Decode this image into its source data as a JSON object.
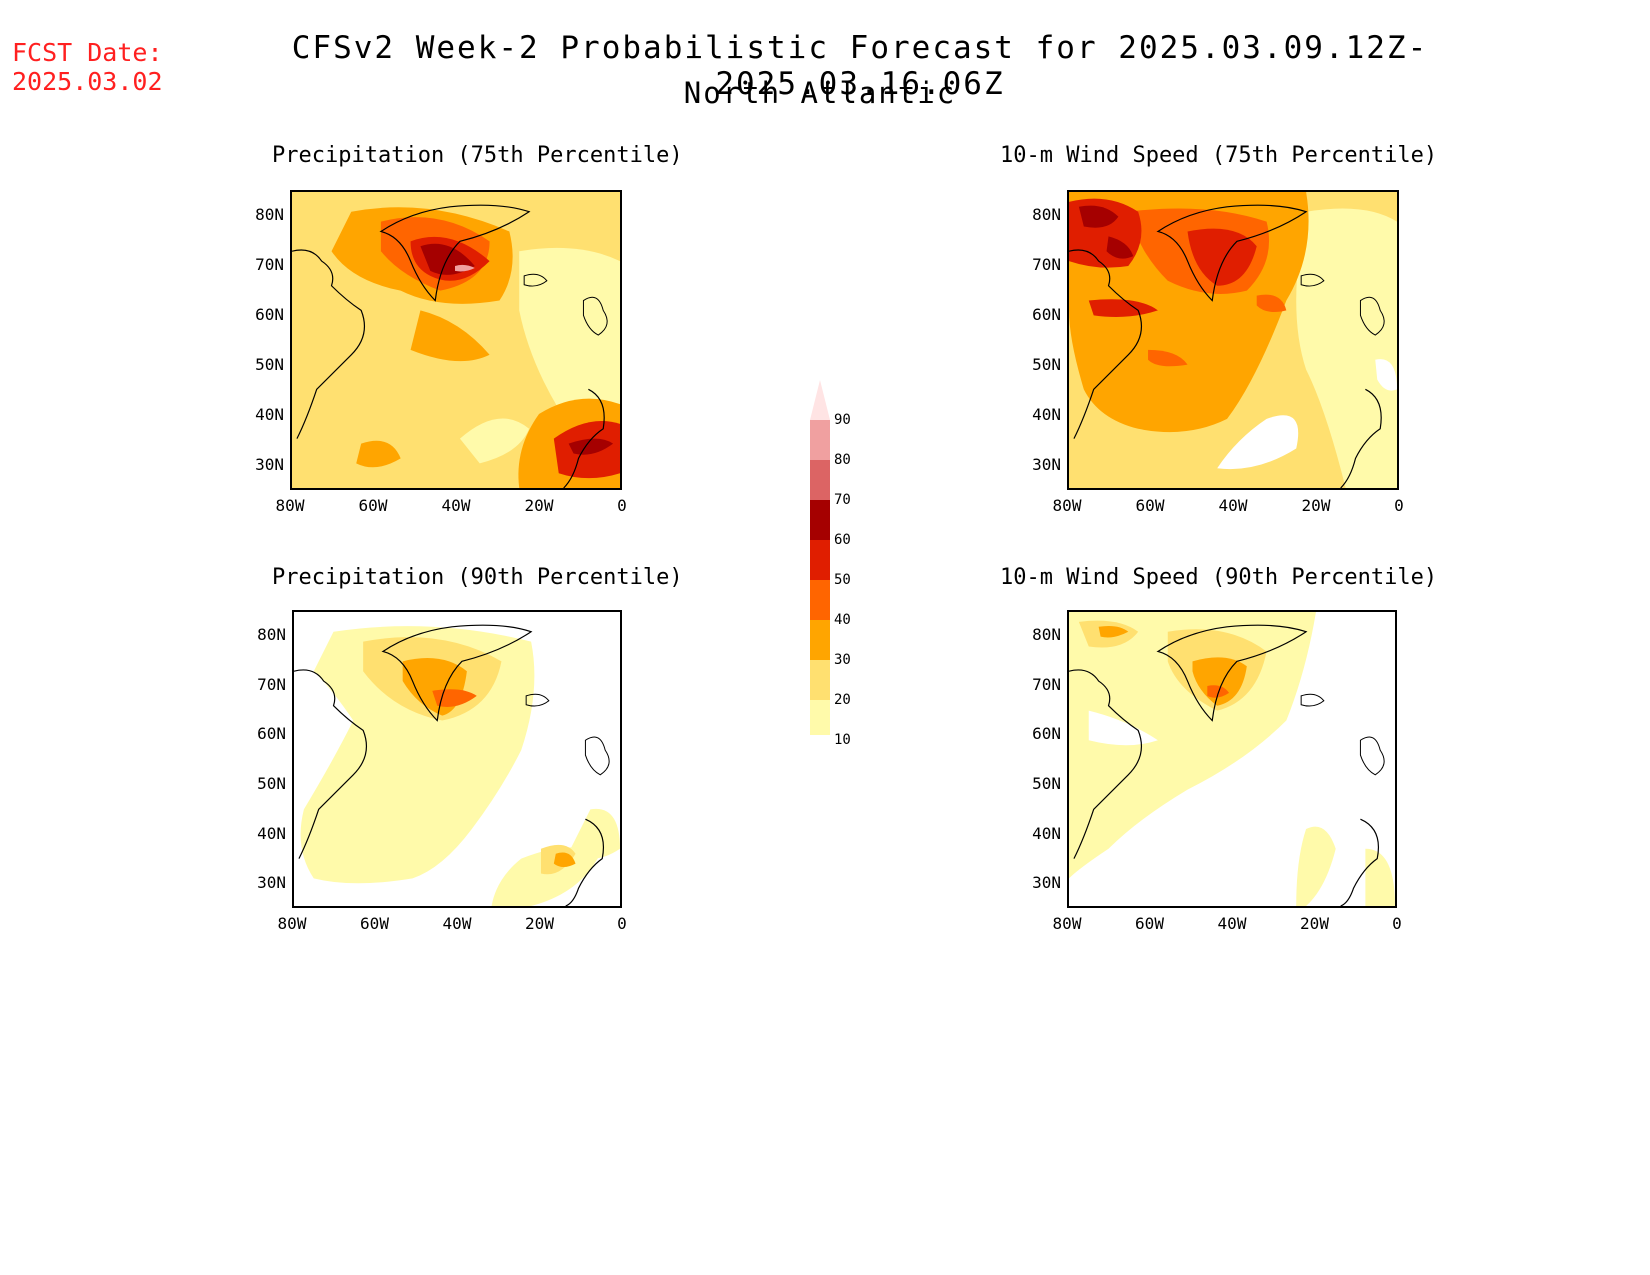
{
  "header": {
    "fcst_label": "FCST Date:",
    "fcst_date": "2025.03.02",
    "title": "CFSv2 Week-2 Probabilistic Forecast for 2025.03.09.12Z-2025.03.16.06Z",
    "region": "North Atlantic",
    "fcst_color": "#ff2020"
  },
  "axes": {
    "lat_ticks": [
      "80N",
      "70N",
      "60N",
      "50N",
      "40N",
      "30N"
    ],
    "lon_ticks": [
      "80W",
      "60W",
      "40W",
      "20W",
      "0"
    ]
  },
  "panels": [
    {
      "id": "precip-75",
      "title": "Precipitation (75th Percentile)"
    },
    {
      "id": "wind-75",
      "title": "10-m Wind Speed (75th Percentile)"
    },
    {
      "id": "precip-90",
      "title": "Precipitation (90th Percentile)"
    },
    {
      "id": "wind-90",
      "title": "10-m Wind Speed (90th Percentile)"
    }
  ],
  "colorbar": {
    "levels": [
      "10",
      "20",
      "30",
      "40",
      "50",
      "60",
      "70",
      "80",
      "90"
    ],
    "colors": [
      "#fffaaa",
      "#ffe070",
      "#ffa500",
      "#ff6500",
      "#e01e00",
      "#a50000",
      "#dc6464",
      "#f0a0a0",
      "#ffe4e4"
    ]
  }
}
